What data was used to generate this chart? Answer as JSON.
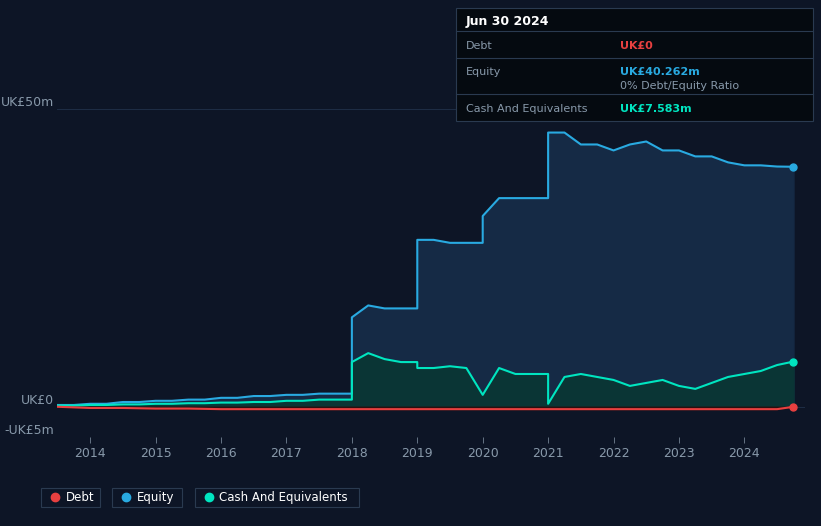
{
  "background_color": "#0d1526",
  "plot_bg_color": "#0d1526",
  "title_box": {
    "date": "Jun 30 2024",
    "debt_label": "Debt",
    "debt_value": "UK£0",
    "equity_label": "Equity",
    "equity_value": "UK£40.262m",
    "ratio_text": "0% Debt/Equity Ratio",
    "cash_label": "Cash And Equivalents",
    "cash_value": "UK£7.583m"
  },
  "ylabel_top": "UK£50m",
  "ylabel_zero": "UK£0",
  "ylabel_neg": "-UK£5m",
  "ylim": [
    -5,
    55
  ],
  "xlim_start": 2013.5,
  "xlim_end": 2024.92,
  "xtick_years": [
    2014,
    2015,
    2016,
    2017,
    2018,
    2019,
    2020,
    2021,
    2022,
    2023,
    2024
  ],
  "equity_color": "#29aae1",
  "equity_fill": "#152a45",
  "cash_color": "#00e5c0",
  "cash_fill": "#0a3535",
  "debt_color": "#e84040",
  "debt_fill": "#2a1010",
  "grid_color": "#1e2d45",
  "text_color": "#8899aa",
  "equity_x": [
    2013.5,
    2013.75,
    2014.0,
    2014.25,
    2014.5,
    2014.75,
    2015.0,
    2015.25,
    2015.5,
    2015.75,
    2016.0,
    2016.25,
    2016.5,
    2016.75,
    2017.0,
    2017.25,
    2017.5,
    2017.75,
    2018.0,
    2018.0,
    2018.25,
    2018.5,
    2018.75,
    2019.0,
    2019.0,
    2019.25,
    2019.5,
    2019.75,
    2020.0,
    2020.0,
    2020.25,
    2020.5,
    2020.75,
    2021.0,
    2021.0,
    2021.25,
    2021.5,
    2021.75,
    2022.0,
    2022.25,
    2022.5,
    2022.75,
    2023.0,
    2023.25,
    2023.5,
    2023.75,
    2024.0,
    2024.25,
    2024.5,
    2024.75
  ],
  "equity_y": [
    0.3,
    0.3,
    0.5,
    0.5,
    0.8,
    0.8,
    1.0,
    1.0,
    1.2,
    1.2,
    1.5,
    1.5,
    1.8,
    1.8,
    2.0,
    2.0,
    2.2,
    2.2,
    2.2,
    15.0,
    17.0,
    16.5,
    16.5,
    16.5,
    28.0,
    28.0,
    27.5,
    27.5,
    27.5,
    32.0,
    35.0,
    35.0,
    35.0,
    35.0,
    46.0,
    46.0,
    44.0,
    44.0,
    43.0,
    44.0,
    44.5,
    43.0,
    43.0,
    42.0,
    42.0,
    41.0,
    40.5,
    40.5,
    40.3,
    40.262
  ],
  "cash_x": [
    2013.5,
    2013.75,
    2014.0,
    2014.25,
    2014.5,
    2014.75,
    2015.0,
    2015.25,
    2015.5,
    2015.75,
    2016.0,
    2016.25,
    2016.5,
    2016.75,
    2017.0,
    2017.25,
    2017.5,
    2017.75,
    2018.0,
    2018.0,
    2018.25,
    2018.5,
    2018.75,
    2019.0,
    2019.0,
    2019.25,
    2019.5,
    2019.75,
    2020.0,
    2020.25,
    2020.5,
    2020.75,
    2021.0,
    2021.0,
    2021.25,
    2021.5,
    2021.75,
    2022.0,
    2022.25,
    2022.5,
    2022.75,
    2023.0,
    2023.25,
    2023.5,
    2023.75,
    2024.0,
    2024.25,
    2024.5,
    2024.75
  ],
  "cash_y": [
    0.2,
    0.2,
    0.3,
    0.3,
    0.4,
    0.4,
    0.5,
    0.5,
    0.6,
    0.6,
    0.7,
    0.7,
    0.8,
    0.8,
    1.0,
    1.0,
    1.2,
    1.2,
    1.2,
    7.5,
    9.0,
    8.0,
    7.5,
    7.5,
    6.5,
    6.5,
    6.8,
    6.5,
    2.0,
    6.5,
    5.5,
    5.5,
    5.5,
    0.5,
    5.0,
    5.5,
    5.0,
    4.5,
    3.5,
    4.0,
    4.5,
    3.5,
    3.0,
    4.0,
    5.0,
    5.5,
    6.0,
    7.0,
    7.583
  ],
  "debt_x": [
    2013.5,
    2014.0,
    2014.5,
    2015.0,
    2015.5,
    2016.0,
    2016.5,
    2017.0,
    2017.5,
    2018.0,
    2018.5,
    2019.0,
    2019.5,
    2020.0,
    2020.5,
    2021.0,
    2021.5,
    2022.0,
    2022.5,
    2023.0,
    2023.5,
    2024.0,
    2024.5,
    2024.75
  ],
  "debt_y": [
    0.0,
    -0.2,
    -0.2,
    -0.3,
    -0.3,
    -0.4,
    -0.4,
    -0.4,
    -0.4,
    -0.4,
    -0.4,
    -0.4,
    -0.4,
    -0.4,
    -0.4,
    -0.4,
    -0.4,
    -0.4,
    -0.4,
    -0.4,
    -0.4,
    -0.4,
    -0.4,
    0.0
  ],
  "legend_items": [
    {
      "label": "Debt",
      "color": "#e84040"
    },
    {
      "label": "Equity",
      "color": "#29aae1"
    },
    {
      "label": "Cash And Equivalents",
      "color": "#00e5c0"
    }
  ]
}
